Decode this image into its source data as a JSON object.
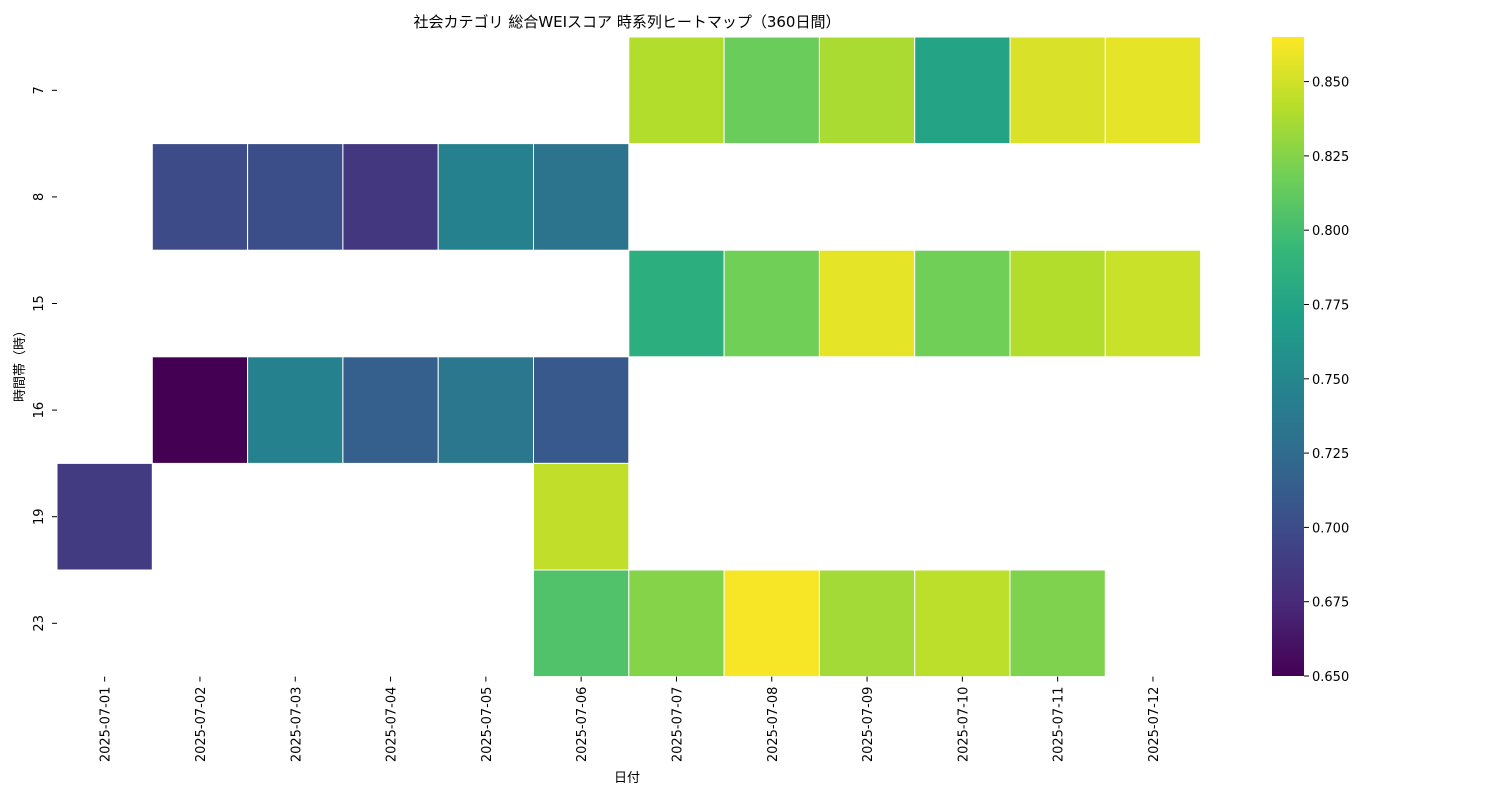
{
  "chart_data": {
    "type": "heatmap",
    "title": "社会カテゴリ 総合WEIスコア 時系列ヒートマップ（360日間）",
    "xlabel": "日付",
    "ylabel": "時間帯（時）",
    "x": [
      "2025-07-01",
      "2025-07-02",
      "2025-07-03",
      "2025-07-04",
      "2025-07-05",
      "2025-07-06",
      "2025-07-07",
      "2025-07-08",
      "2025-07-09",
      "2025-07-10",
      "2025-07-11",
      "2025-07-12"
    ],
    "y": [
      "7",
      "8",
      "15",
      "16",
      "19",
      "23"
    ],
    "values": [
      [
        null,
        null,
        null,
        null,
        null,
        null,
        0.84,
        0.815,
        0.837,
        0.775,
        0.853,
        0.857
      ],
      [
        null,
        0.7,
        0.702,
        0.685,
        0.745,
        0.732,
        null,
        null,
        null,
        null,
        null,
        null
      ],
      [
        null,
        null,
        null,
        null,
        null,
        null,
        0.785,
        0.818,
        0.857,
        0.818,
        0.84,
        0.848
      ],
      [
        null,
        0.65,
        0.745,
        0.715,
        0.735,
        0.71,
        null,
        null,
        null,
        null,
        null,
        null
      ],
      [
        0.688,
        null,
        null,
        null,
        null,
        0.845,
        null,
        null,
        null,
        null,
        null,
        null
      ],
      [
        null,
        null,
        null,
        null,
        null,
        0.805,
        0.825,
        0.863,
        0.835,
        0.843,
        0.823,
        null
      ]
    ],
    "colorbar": {
      "colormap": "viridis",
      "range": [
        0.65,
        0.865
      ],
      "ticks": [
        "0.650",
        "0.675",
        "0.700",
        "0.725",
        "0.750",
        "0.775",
        "0.800",
        "0.825",
        "0.850"
      ]
    },
    "grid": false,
    "legend": "colorbar-right"
  }
}
